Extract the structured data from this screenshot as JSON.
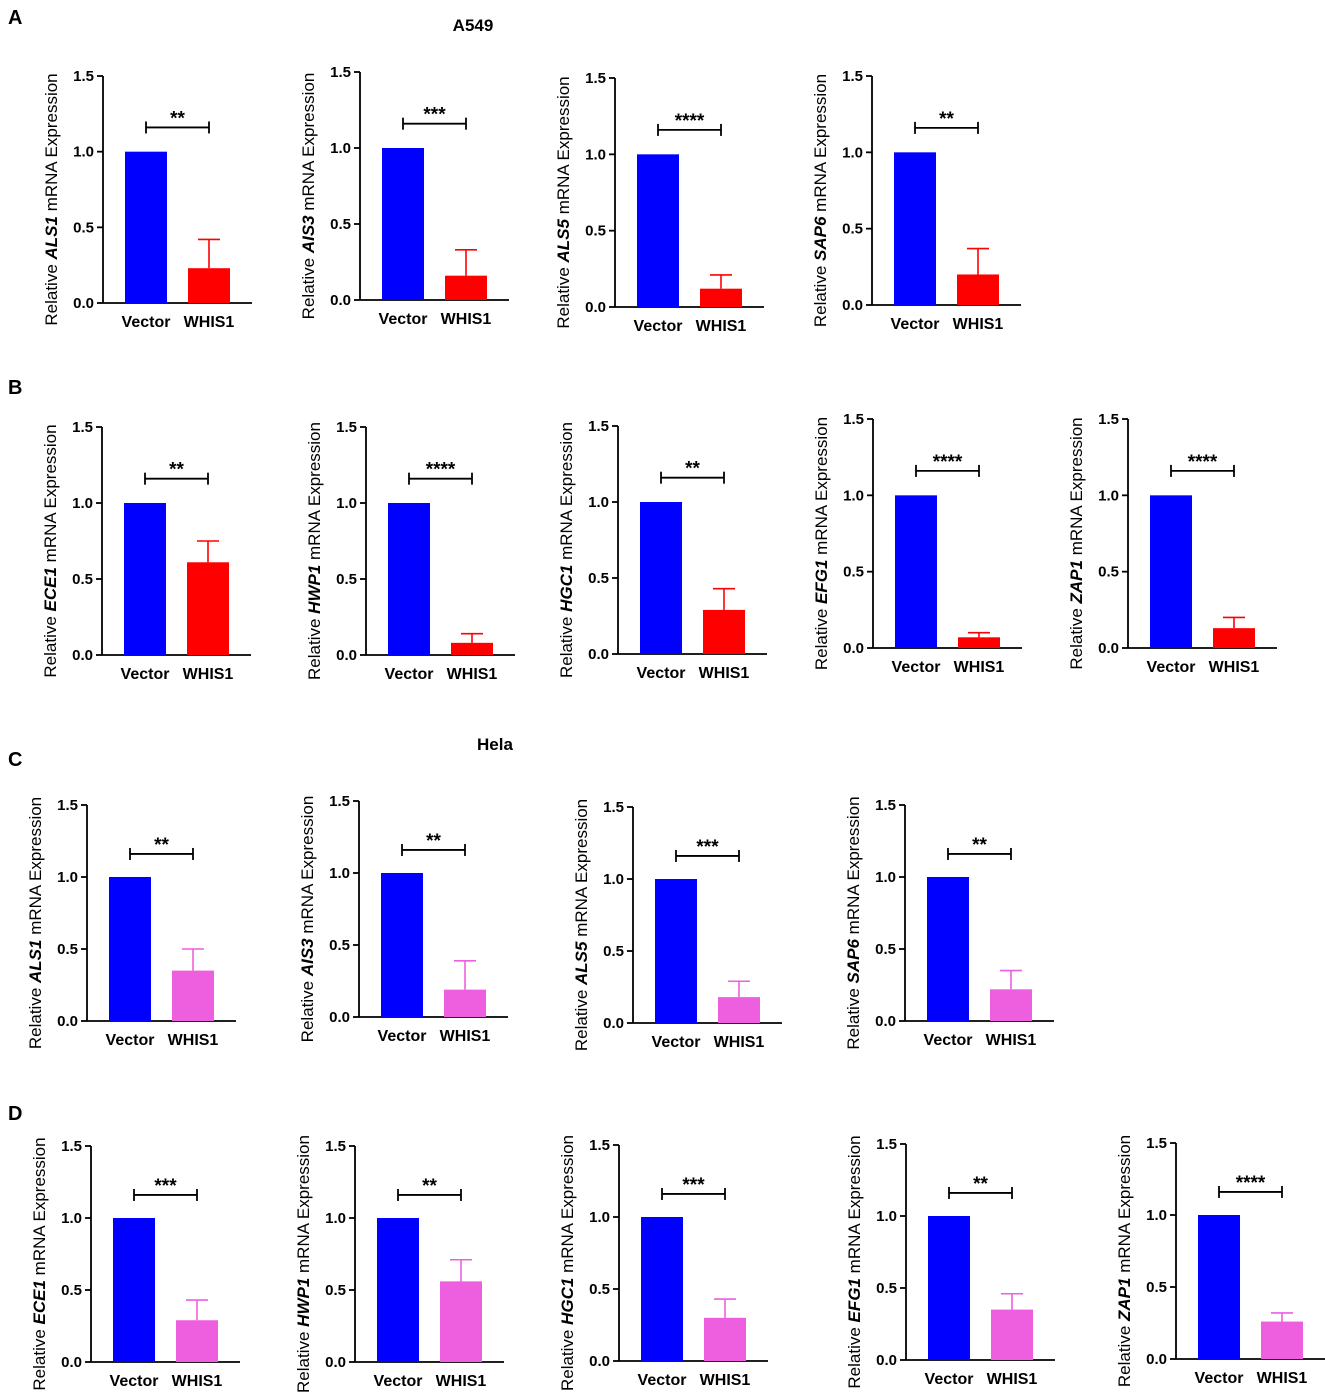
{
  "colors": {
    "vector": "#0000FF",
    "whis1_a549": "#FF0000",
    "whis1_hela": "#EE5FDF",
    "axis": "#000000"
  },
  "labels": {
    "panel_A": "A",
    "panel_B": "B",
    "panel_C": "C",
    "panel_D": "D",
    "cell_a549": "A549",
    "cell_hela": "Hela",
    "ylabel_prefix": "Relative ",
    "ylabel_suffix": " mRNA Expression"
  },
  "chart_data": [
    {
      "panel": "A",
      "type": "bar",
      "gene": "ALS1",
      "categories": [
        "Vector",
        "WHIS1"
      ],
      "values": [
        1.0,
        0.23
      ],
      "errors": [
        0,
        0.19
      ],
      "significance": "**",
      "ylim": [
        0,
        1.5
      ],
      "yticks": [
        "0.0",
        "0.5",
        "1.0",
        "1.5"
      ]
    },
    {
      "panel": "A",
      "type": "bar",
      "gene": "AIS3",
      "categories": [
        "Vector",
        "WHIS1"
      ],
      "values": [
        1.0,
        0.16
      ],
      "errors": [
        0,
        0.17
      ],
      "significance": "***",
      "ylim": [
        0,
        1.5
      ],
      "yticks": [
        "0.0",
        "0.5",
        "1.0",
        "1.5"
      ]
    },
    {
      "panel": "A",
      "type": "bar",
      "gene": "ALS5",
      "categories": [
        "Vector",
        "WHIS1"
      ],
      "values": [
        1.0,
        0.12
      ],
      "errors": [
        0,
        0.09
      ],
      "significance": "****",
      "ylim": [
        0,
        1.5
      ],
      "yticks": [
        "0.0",
        "0.5",
        "1.0",
        "1.5"
      ]
    },
    {
      "panel": "A",
      "type": "bar",
      "gene": "SAP6",
      "categories": [
        "Vector",
        "WHIS1"
      ],
      "values": [
        1.0,
        0.2
      ],
      "errors": [
        0,
        0.17
      ],
      "significance": "**",
      "ylim": [
        0,
        1.5
      ],
      "yticks": [
        "0.0",
        "0.5",
        "1.0",
        "1.5"
      ]
    },
    {
      "panel": "B",
      "type": "bar",
      "gene": "ECE1",
      "categories": [
        "Vector",
        "WHIS1"
      ],
      "values": [
        1.0,
        0.61
      ],
      "errors": [
        0,
        0.14
      ],
      "significance": "**",
      "ylim": [
        0,
        1.5
      ],
      "yticks": [
        "0.0",
        "0.5",
        "1.0",
        "1.5"
      ]
    },
    {
      "panel": "B",
      "type": "bar",
      "gene": "HWP1",
      "categories": [
        "Vector",
        "WHIS1"
      ],
      "values": [
        1.0,
        0.08
      ],
      "errors": [
        0,
        0.06
      ],
      "significance": "****",
      "ylim": [
        0,
        1.5
      ],
      "yticks": [
        "0.0",
        "0.5",
        "1.0",
        "1.5"
      ]
    },
    {
      "panel": "B",
      "type": "bar",
      "gene": "HGC1",
      "categories": [
        "Vector",
        "WHIS1"
      ],
      "values": [
        1.0,
        0.29
      ],
      "errors": [
        0,
        0.14
      ],
      "significance": "**",
      "ylim": [
        0,
        1.5
      ],
      "yticks": [
        "0.0",
        "0.5",
        "1.0",
        "1.5"
      ]
    },
    {
      "panel": "B",
      "type": "bar",
      "gene": "EFG1",
      "categories": [
        "Vector",
        "WHIS1"
      ],
      "values": [
        1.0,
        0.07
      ],
      "errors": [
        0,
        0.03
      ],
      "significance": "****",
      "ylim": [
        0,
        1.5
      ],
      "yticks": [
        "0.0",
        "0.5",
        "1.0",
        "1.5"
      ]
    },
    {
      "panel": "B",
      "type": "bar",
      "gene": "ZAP1",
      "categories": [
        "Vector",
        "WHIS1"
      ],
      "values": [
        1.0,
        0.13
      ],
      "errors": [
        0,
        0.07
      ],
      "significance": "****",
      "ylim": [
        0,
        1.5
      ],
      "yticks": [
        "0.0",
        "0.5",
        "1.0",
        "1.5"
      ]
    },
    {
      "panel": "C",
      "type": "bar",
      "gene": "ALS1",
      "categories": [
        "Vector",
        "WHIS1"
      ],
      "values": [
        1.0,
        0.35
      ],
      "errors": [
        0,
        0.15
      ],
      "significance": "**",
      "ylim": [
        0,
        1.5
      ],
      "yticks": [
        "0.0",
        "0.5",
        "1.0",
        "1.5"
      ]
    },
    {
      "panel": "C",
      "type": "bar",
      "gene": "AIS3",
      "categories": [
        "Vector",
        "WHIS1"
      ],
      "values": [
        1.0,
        0.19
      ],
      "errors": [
        0,
        0.2
      ],
      "significance": "**",
      "ylim": [
        0,
        1.5
      ],
      "yticks": [
        "0.0",
        "0.5",
        "1.0",
        "1.5"
      ]
    },
    {
      "panel": "C",
      "type": "bar",
      "gene": "ALS5",
      "categories": [
        "Vector",
        "WHIS1"
      ],
      "values": [
        1.0,
        0.18
      ],
      "errors": [
        0,
        0.11
      ],
      "significance": "***",
      "ylim": [
        0,
        1.5
      ],
      "yticks": [
        "0.0",
        "0.5",
        "1.0",
        "1.5"
      ]
    },
    {
      "panel": "C",
      "type": "bar",
      "gene": "SAP6",
      "categories": [
        "Vector",
        "WHIS1"
      ],
      "values": [
        1.0,
        0.22
      ],
      "errors": [
        0,
        0.13
      ],
      "significance": "**",
      "ylim": [
        0,
        1.5
      ],
      "yticks": [
        "0.0",
        "0.5",
        "1.0",
        "1.5"
      ]
    },
    {
      "panel": "D",
      "type": "bar",
      "gene": "ECE1",
      "categories": [
        "Vector",
        "WHIS1"
      ],
      "values": [
        1.0,
        0.29
      ],
      "errors": [
        0,
        0.14
      ],
      "significance": "***",
      "ylim": [
        0,
        1.5
      ],
      "yticks": [
        "0.0",
        "0.5",
        "1.0",
        "1.5"
      ]
    },
    {
      "panel": "D",
      "type": "bar",
      "gene": "HWP1",
      "categories": [
        "Vector",
        "WHIS1"
      ],
      "values": [
        1.0,
        0.56
      ],
      "errors": [
        0,
        0.15
      ],
      "significance": "**",
      "ylim": [
        0,
        1.5
      ],
      "yticks": [
        "0.0",
        "0.5",
        "1.0",
        "1.5"
      ]
    },
    {
      "panel": "D",
      "type": "bar",
      "gene": "HGC1",
      "categories": [
        "Vector",
        "WHIS1"
      ],
      "values": [
        1.0,
        0.3
      ],
      "errors": [
        0,
        0.13
      ],
      "significance": "***",
      "ylim": [
        0,
        1.5
      ],
      "yticks": [
        "0.0",
        "0.5",
        "1.0",
        "1.5"
      ]
    },
    {
      "panel": "D",
      "type": "bar",
      "gene": "EFG1",
      "categories": [
        "Vector",
        "WHIS1"
      ],
      "values": [
        1.0,
        0.35
      ],
      "errors": [
        0,
        0.11
      ],
      "significance": "**",
      "ylim": [
        0,
        1.5
      ],
      "yticks": [
        "0.0",
        "0.5",
        "1.0",
        "1.5"
      ]
    },
    {
      "panel": "D",
      "type": "bar",
      "gene": "ZAP1",
      "categories": [
        "Vector",
        "WHIS1"
      ],
      "values": [
        1.0,
        0.26
      ],
      "errors": [
        0,
        0.06
      ],
      "significance": "****",
      "ylim": [
        0,
        1.5
      ],
      "yticks": [
        "0.0",
        "0.5",
        "1.0",
        "1.5"
      ]
    }
  ]
}
